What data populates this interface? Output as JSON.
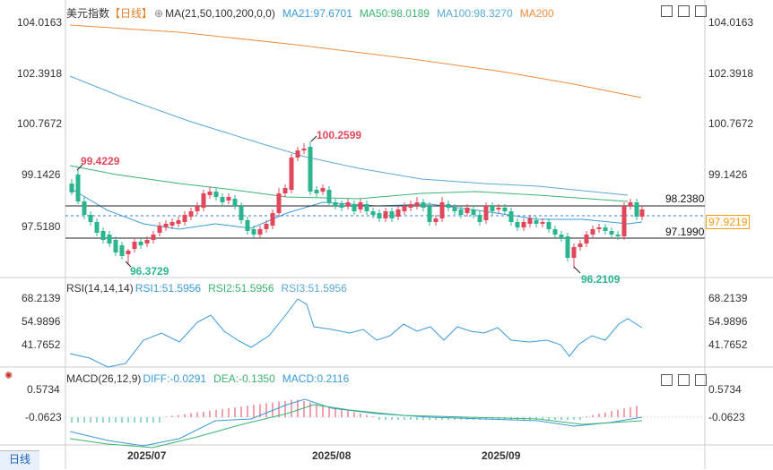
{
  "header": {
    "symbol": "美元指数",
    "period": "【日线】",
    "ma_label": "MA(21,50,100,200,0,0)",
    "ma21": "MA21:97.6701",
    "ma50": "MA50:98.0189",
    "ma100": "MA100:98.3270",
    "ma200": "MA200",
    "colors": {
      "ma21": "#3a9ad9",
      "ma50": "#3cb371",
      "ma100": "#5aa9d6",
      "ma200": "#f08c3c",
      "up": "#e0475b",
      "down": "#2bb58f"
    }
  },
  "price_axis": {
    "ticks": [
      "104.0163",
      "102.3918",
      "100.7672",
      "99.1426",
      "97.5180"
    ]
  },
  "price_annotations": {
    "high_left": "99.4229",
    "peak": "100.2599",
    "low_left": "96.3729",
    "low_right": "96.2109",
    "resistance": "98.2380",
    "support": "97.1990",
    "current": "97.9219"
  },
  "rsi": {
    "label": "RSI(14,14,14)",
    "rsi1": "RSI1:51.5956",
    "rsi2": "RSI2:51.5956",
    "rsi3": "RSI3:51.5956",
    "ticks": [
      "68.2139",
      "54.9896",
      "41.7652"
    ]
  },
  "macd": {
    "label": "MACD(26,12,9)",
    "diff": "DIFF:-0.0291",
    "dea": "DEA:-0.1350",
    "macd": "MACD:0.2116",
    "ticks": [
      "0.5734",
      "-0.0623"
    ]
  },
  "time_axis": {
    "labels": [
      "2025/07",
      "2025/08",
      "2025/09"
    ]
  },
  "footer_tab": "日线"
}
